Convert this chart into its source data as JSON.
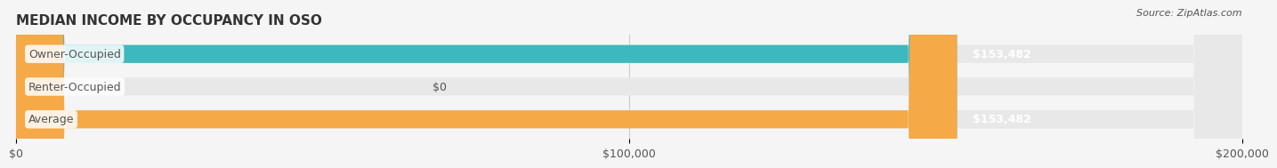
{
  "title": "MEDIAN INCOME BY OCCUPANCY IN OSO",
  "source": "Source: ZipAtlas.com",
  "categories": [
    "Owner-Occupied",
    "Renter-Occupied",
    "Average"
  ],
  "values": [
    153482,
    0,
    153482
  ],
  "bar_colors": [
    "#3db8be",
    "#c9a8d4",
    "#f5a947"
  ],
  "value_labels": [
    "$153,482",
    "$0",
    "$153,482"
  ],
  "xlim": [
    0,
    200000
  ],
  "xticks": [
    0,
    100000,
    200000
  ],
  "xtick_labels": [
    "$0",
    "$100,000",
    "$200,000"
  ],
  "bar_height": 0.55,
  "bg_color": "#f5f5f5",
  "bar_bg_color": "#e8e8e8",
  "title_fontsize": 11,
  "label_fontsize": 9,
  "tick_fontsize": 9,
  "source_fontsize": 8,
  "text_color": "#555555",
  "title_color": "#333333"
}
